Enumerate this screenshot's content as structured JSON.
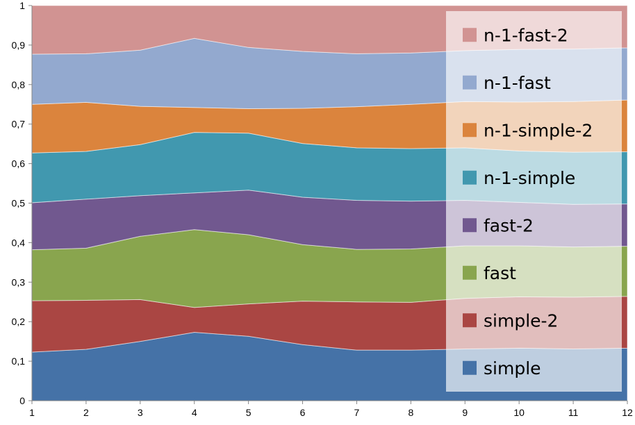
{
  "chart_data": {
    "type": "area",
    "stacked": true,
    "title": "",
    "xlabel": "",
    "ylabel": "",
    "x": [
      1,
      2,
      3,
      4,
      5,
      6,
      7,
      8,
      9,
      10,
      11,
      12
    ],
    "xlim": [
      1,
      12
    ],
    "ylim": [
      0,
      1
    ],
    "y_ticks": [
      "0",
      "0,1",
      "0,2",
      "0,3",
      "0,4",
      "0,5",
      "0,6",
      "0,7",
      "0,8",
      "0,9",
      "1"
    ],
    "x_ticks": [
      "1",
      "2",
      "3",
      "4",
      "5",
      "6",
      "7",
      "8",
      "9",
      "10",
      "11",
      "12"
    ],
    "grid": false,
    "legend_position": "right",
    "series": [
      {
        "name": "simple",
        "color": "#4572A7",
        "values": [
          0.123,
          0.13,
          0.15,
          0.173,
          0.163,
          0.142,
          0.128,
          0.128,
          0.131,
          0.133,
          0.131,
          0.133
        ]
      },
      {
        "name": "simple-2",
        "color": "#AA4643",
        "values": [
          0.13,
          0.124,
          0.106,
          0.063,
          0.082,
          0.11,
          0.122,
          0.121,
          0.128,
          0.13,
          0.131,
          0.131
        ]
      },
      {
        "name": "fast",
        "color": "#89A54E",
        "values": [
          0.129,
          0.132,
          0.16,
          0.197,
          0.175,
          0.143,
          0.133,
          0.135,
          0.133,
          0.129,
          0.127,
          0.127
        ]
      },
      {
        "name": "fast-2",
        "color": "#71588F",
        "values": [
          0.119,
          0.124,
          0.103,
          0.093,
          0.113,
          0.12,
          0.124,
          0.121,
          0.115,
          0.11,
          0.108,
          0.107
        ]
      },
      {
        "name": "n-1-simple",
        "color": "#4198AF",
        "values": [
          0.126,
          0.121,
          0.129,
          0.153,
          0.144,
          0.136,
          0.133,
          0.133,
          0.133,
          0.13,
          0.132,
          0.132
        ]
      },
      {
        "name": "n-1-simple-2",
        "color": "#DB843D",
        "values": [
          0.123,
          0.124,
          0.097,
          0.063,
          0.062,
          0.089,
          0.104,
          0.112,
          0.117,
          0.124,
          0.128,
          0.131
        ]
      },
      {
        "name": "n-1-fast",
        "color": "#93A9CF",
        "values": [
          0.127,
          0.123,
          0.142,
          0.175,
          0.155,
          0.144,
          0.134,
          0.13,
          0.129,
          0.133,
          0.133,
          0.132
        ]
      },
      {
        "name": "n-1-fast-2",
        "color": "#D19392",
        "values": [
          0.123,
          0.122,
          0.113,
          0.083,
          0.106,
          0.116,
          0.122,
          0.12,
          0.114,
          0.111,
          0.11,
          0.107
        ]
      }
    ]
  }
}
